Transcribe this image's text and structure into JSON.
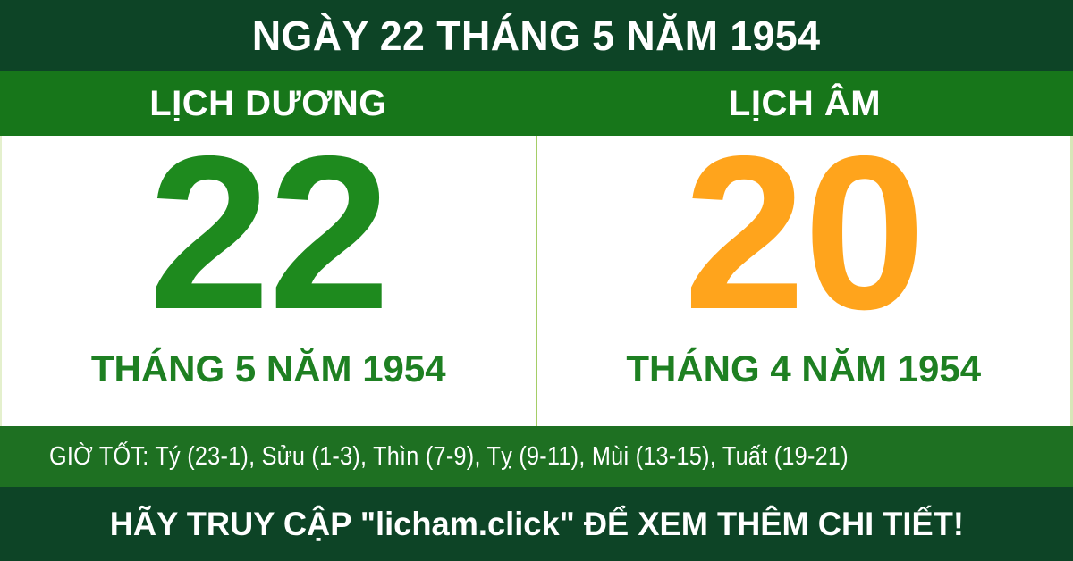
{
  "header": {
    "title": "NGÀY 22 THÁNG 5 NĂM 1954"
  },
  "columns": {
    "solar_label": "LỊCH DƯƠNG",
    "lunar_label": "LỊCH ÂM"
  },
  "solar": {
    "day": "22",
    "month_line": "THÁNG 5 NĂM 1954"
  },
  "lunar": {
    "day": "20",
    "month_line": "THÁNG 4 NĂM 1954"
  },
  "good_hours": {
    "text": "GIỜ TỐT: Tý (23-1), Sửu (1-3), Thìn (7-9), Tỵ (9-11), Mùi (13-15), Tuất (19-21)"
  },
  "footer": {
    "cta": "HÃY TRUY CẬP \"licham.click\" ĐỂ XEM THÊM CHI TIẾT!"
  },
  "colors": {
    "dark_green": "#0D4426",
    "band_green": "#17761A",
    "hours_green": "#1E7022",
    "solar_day_green": "#1E8A1E",
    "lunar_day_orange": "#FFA41C",
    "month_green": "#1E8022",
    "divider_green": "#A5CE67",
    "panel_bg": "#FFFFFF",
    "text_white": "#FFFFFF"
  }
}
